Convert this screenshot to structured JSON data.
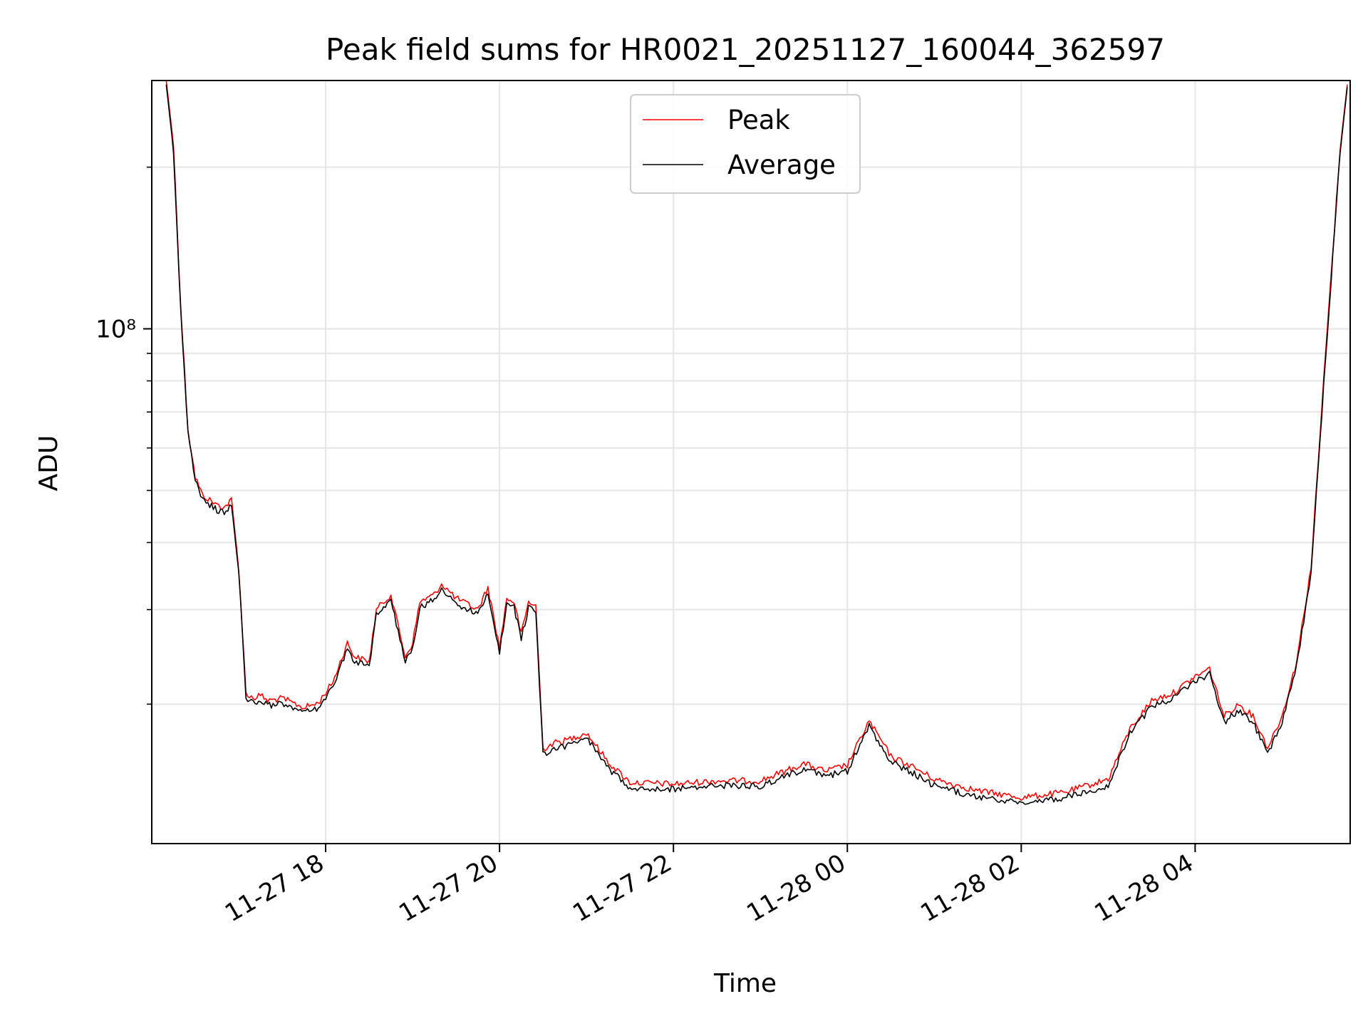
{
  "chart_data": {
    "type": "line",
    "title": "Peak field sums for HR0021_20251127_160044_362597",
    "xlabel": "Time",
    "ylabel": "ADU",
    "x_axis": "datetime",
    "x_ticks": [
      "2025-11-27 18:00",
      "2025-11-27 20:00",
      "2025-11-27 22:00",
      "2025-11-28 00:00",
      "2025-11-28 02:00",
      "2025-11-28 04:00"
    ],
    "x_tick_labels": [
      "11-27 18",
      "11-27 20",
      "11-27 22",
      "11-28 00",
      "11-28 02",
      "11-28 04"
    ],
    "xlim": [
      "2025-11-27 16:00",
      "2025-11-28 05:47"
    ],
    "y_scale": "log",
    "ylim": [
      11000000,
      290000000
    ],
    "y_major_ticks": [
      100000000
    ],
    "y_major_tick_labels": [
      "10⁸"
    ],
    "y_minor_ticks": [
      20000000,
      30000000,
      40000000,
      50000000,
      60000000,
      70000000,
      80000000,
      90000000,
      200000000
    ],
    "grid": true,
    "legend_position": "top-center",
    "series": [
      {
        "name": "Peak",
        "color": "#ff0000",
        "x": [
          "2025-11-27 16:10",
          "2025-11-27 16:15",
          "2025-11-27 16:20",
          "2025-11-27 16:25",
          "2025-11-27 16:30",
          "2025-11-27 16:35",
          "2025-11-27 16:45",
          "2025-11-27 16:50",
          "2025-11-27 16:55",
          "2025-11-27 17:00",
          "2025-11-27 17:05",
          "2025-11-27 17:10",
          "2025-11-27 17:15",
          "2025-11-27 17:20",
          "2025-11-27 17:30",
          "2025-11-27 17:45",
          "2025-11-27 17:55",
          "2025-11-27 18:05",
          "2025-11-27 18:15",
          "2025-11-27 18:20",
          "2025-11-27 18:30",
          "2025-11-27 18:35",
          "2025-11-27 18:45",
          "2025-11-27 18:55",
          "2025-11-27 19:00",
          "2025-11-27 19:05",
          "2025-11-27 19:15",
          "2025-11-27 19:20",
          "2025-11-27 19:30",
          "2025-11-27 19:45",
          "2025-11-27 19:52",
          "2025-11-27 20:00",
          "2025-11-27 20:05",
          "2025-11-27 20:10",
          "2025-11-27 20:15",
          "2025-11-27 20:20",
          "2025-11-27 20:25",
          "2025-11-27 20:30",
          "2025-11-27 20:35",
          "2025-11-27 20:40",
          "2025-11-27 20:45",
          "2025-11-27 21:00",
          "2025-11-27 21:15",
          "2025-11-27 21:30",
          "2025-11-27 22:00",
          "2025-11-27 22:30",
          "2025-11-27 23:00",
          "2025-11-27 23:30",
          "2025-11-27 23:45",
          "2025-11-28 00:00",
          "2025-11-28 00:15",
          "2025-11-28 00:30",
          "2025-11-28 00:45",
          "2025-11-28 01:00",
          "2025-11-28 01:30",
          "2025-11-28 02:00",
          "2025-11-28 02:30",
          "2025-11-28 03:00",
          "2025-11-28 03:15",
          "2025-11-28 03:30",
          "2025-11-28 03:45",
          "2025-11-28 04:00",
          "2025-11-28 04:10",
          "2025-11-28 04:20",
          "2025-11-28 04:30",
          "2025-11-28 04:40",
          "2025-11-28 04:50",
          "2025-11-28 05:00",
          "2025-11-28 05:10",
          "2025-11-28 05:20",
          "2025-11-28 05:30",
          "2025-11-28 05:40",
          "2025-11-28 05:45"
        ],
        "values": [
          290000000,
          220000000,
          110000000,
          65000000,
          53000000,
          49000000,
          47000000,
          46500000,
          48000000,
          36000000,
          21000000,
          20500000,
          20800000,
          20300000,
          20500000,
          19700000,
          20100000,
          22000000,
          26000000,
          24500000,
          24000000,
          30000000,
          32000000,
          24500000,
          26000000,
          31000000,
          32000000,
          33500000,
          31500000,
          30000000,
          33000000,
          25500000,
          31500000,
          31000000,
          27000000,
          31000000,
          30500000,
          16500000,
          16800000,
          17000000,
          17100000,
          17700000,
          15600000,
          14300000,
          14200000,
          14400000,
          14400000,
          15500000,
          15000000,
          15400000,
          18600000,
          16000000,
          15300000,
          14500000,
          13800000,
          13400000,
          13700000,
          14500000,
          18000000,
          20300000,
          21000000,
          22500000,
          23300000,
          19000000,
          20000000,
          19000000,
          16600000,
          19000000,
          24000000,
          36000000,
          90000000,
          215000000,
          285000000
        ]
      },
      {
        "name": "Average",
        "color": "#000000",
        "x": [
          "2025-11-27 16:10",
          "2025-11-27 16:15",
          "2025-11-27 16:20",
          "2025-11-27 16:25",
          "2025-11-27 16:30",
          "2025-11-27 16:35",
          "2025-11-27 16:45",
          "2025-11-27 16:50",
          "2025-11-27 16:55",
          "2025-11-27 17:00",
          "2025-11-27 17:05",
          "2025-11-27 17:10",
          "2025-11-27 17:15",
          "2025-11-27 17:20",
          "2025-11-27 17:30",
          "2025-11-27 17:45",
          "2025-11-27 17:55",
          "2025-11-27 18:05",
          "2025-11-27 18:15",
          "2025-11-27 18:20",
          "2025-11-27 18:30",
          "2025-11-27 18:35",
          "2025-11-27 18:45",
          "2025-11-27 18:55",
          "2025-11-27 19:00",
          "2025-11-27 19:05",
          "2025-11-27 19:15",
          "2025-11-27 19:20",
          "2025-11-27 19:30",
          "2025-11-27 19:45",
          "2025-11-27 19:52",
          "2025-11-27 20:00",
          "2025-11-27 20:05",
          "2025-11-27 20:10",
          "2025-11-27 20:15",
          "2025-11-27 20:20",
          "2025-11-27 20:25",
          "2025-11-27 20:30",
          "2025-11-27 20:35",
          "2025-11-27 20:40",
          "2025-11-27 20:45",
          "2025-11-27 21:00",
          "2025-11-27 21:15",
          "2025-11-27 21:30",
          "2025-11-27 22:00",
          "2025-11-27 22:30",
          "2025-11-27 23:00",
          "2025-11-27 23:30",
          "2025-11-27 23:45",
          "2025-11-28 00:00",
          "2025-11-28 00:15",
          "2025-11-28 00:30",
          "2025-11-28 00:45",
          "2025-11-28 01:00",
          "2025-11-28 01:30",
          "2025-11-28 02:00",
          "2025-11-28 02:30",
          "2025-11-28 03:00",
          "2025-11-28 03:15",
          "2025-11-28 03:30",
          "2025-11-28 03:45",
          "2025-11-28 04:00",
          "2025-11-28 04:10",
          "2025-11-28 04:20",
          "2025-11-28 04:30",
          "2025-11-28 04:40",
          "2025-11-28 04:50",
          "2025-11-28 05:00",
          "2025-11-28 05:10",
          "2025-11-28 05:20",
          "2025-11-28 05:30",
          "2025-11-28 05:40",
          "2025-11-28 05:45"
        ],
        "values": [
          285000000,
          215000000,
          108000000,
          64000000,
          52000000,
          48000000,
          46000000,
          45500000,
          47000000,
          35500000,
          20600000,
          20100000,
          20300000,
          19900000,
          20000000,
          19300000,
          19700000,
          21500000,
          25500000,
          24000000,
          23500000,
          29300000,
          31300000,
          24000000,
          25500000,
          30300000,
          31300000,
          32800000,
          30800000,
          29300000,
          32300000,
          25000000,
          30800000,
          30300000,
          26500000,
          30300000,
          29800000,
          16100000,
          16400000,
          16600000,
          16700000,
          17300000,
          15200000,
          14000000,
          13900000,
          14100000,
          14100000,
          15100000,
          14700000,
          15000000,
          18200000,
          15600000,
          14900000,
          14100000,
          13400000,
          13100000,
          13400000,
          14100000,
          17600000,
          19800000,
          20500000,
          22000000,
          22800000,
          18500000,
          19500000,
          18500000,
          16200000,
          18600000,
          23500000,
          35000000,
          88000000,
          212000000,
          282000000
        ]
      }
    ]
  }
}
